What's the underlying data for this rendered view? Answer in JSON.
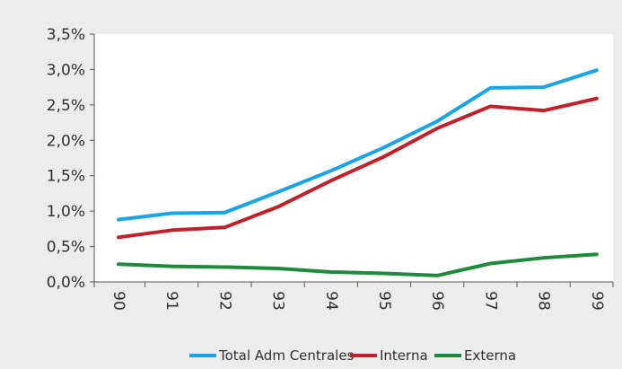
{
  "chart_data": {
    "type": "line",
    "title": "",
    "xlabel": "",
    "ylabel": "",
    "categories": [
      "90",
      "91",
      "92",
      "93",
      "94",
      "95",
      "96",
      "97",
      "98",
      "99"
    ],
    "ylim": [
      0,
      0.035
    ],
    "y_ticks": [
      "0,0%",
      "0,5%",
      "1,0%",
      "1,5%",
      "2,0%",
      "2,5%",
      "3,0%",
      "3,5%"
    ],
    "y_tick_values": [
      0,
      0.005,
      0.01,
      0.015,
      0.02,
      0.025,
      0.03,
      0.035
    ],
    "grid": false,
    "legend_position": "bottom",
    "series": [
      {
        "name": "Total Adm Centrales",
        "color": "#1aa3e6",
        "values": [
          0.0088,
          0.0097,
          0.0098,
          0.0127,
          0.0157,
          0.019,
          0.0227,
          0.0274,
          0.0275,
          0.0299
        ]
      },
      {
        "name": "Interna",
        "color": "#c0202a",
        "values": [
          0.0063,
          0.0073,
          0.0077,
          0.0106,
          0.0143,
          0.0177,
          0.0217,
          0.0248,
          0.0242,
          0.0259
        ]
      },
      {
        "name": "Externa",
        "color": "#1f8a3c",
        "values": [
          0.0025,
          0.0022,
          0.0021,
          0.0019,
          0.0014,
          0.0012,
          0.0009,
          0.0026,
          0.0034,
          0.0039
        ]
      }
    ]
  }
}
